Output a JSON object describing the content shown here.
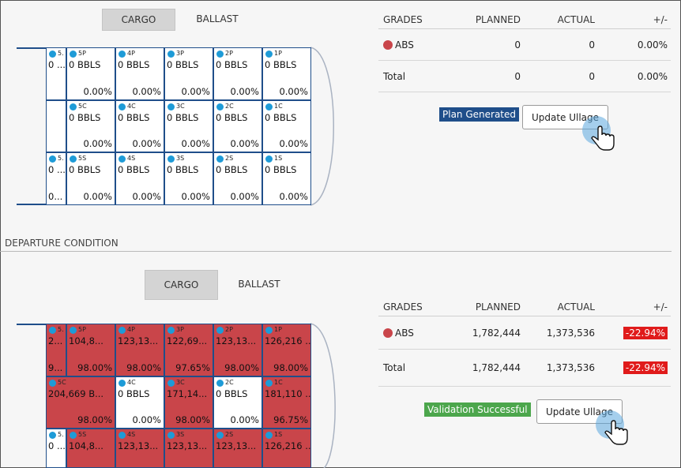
{
  "top": {
    "tabs": [
      {
        "label": "CARGO",
        "active": true
      },
      {
        "label": "BALLAST",
        "active": false
      }
    ],
    "tanks": {
      "slop_port": {
        "name": "5.",
        "vol": "0 ...",
        "pct": ""
      },
      "slop_center": {
        "name": "",
        "vol": "",
        "pct": ""
      },
      "slop_stbd": {
        "name": "5.",
        "vol": "0 ...",
        "pct": "0..."
      },
      "port": [
        {
          "name": "5P",
          "vol": "0 BBLS",
          "pct": "0.00%"
        },
        {
          "name": "4P",
          "vol": "0 BBLS",
          "pct": "0.00%"
        },
        {
          "name": "3P",
          "vol": "0 BBLS",
          "pct": "0.00%"
        },
        {
          "name": "2P",
          "vol": "0 BBLS",
          "pct": "0.00%"
        },
        {
          "name": "1P",
          "vol": "0 BBLS",
          "pct": "0.00%"
        }
      ],
      "center": [
        {
          "name": "5C",
          "vol": "0 BBLS",
          "pct": "0.00%"
        },
        {
          "name": "4C",
          "vol": "0 BBLS",
          "pct": "0.00%"
        },
        {
          "name": "3C",
          "vol": "0 BBLS",
          "pct": "0.00%"
        },
        {
          "name": "2C",
          "vol": "0 BBLS",
          "pct": "0.00%"
        },
        {
          "name": "1C",
          "vol": "0 BBLS",
          "pct": "0.00%"
        }
      ],
      "stbd": [
        {
          "name": "5S",
          "vol": "0 BBLS",
          "pct": "0.00%"
        },
        {
          "name": "4S",
          "vol": "0 BBLS",
          "pct": "0.00%"
        },
        {
          "name": "3S",
          "vol": "0 BBLS",
          "pct": "0.00%"
        },
        {
          "name": "2S",
          "vol": "0 BBLS",
          "pct": "0.00%"
        },
        {
          "name": "1S",
          "vol": "0 BBLS",
          "pct": "0.00%"
        }
      ]
    },
    "grades": {
      "headers": {
        "grades": "GRADES",
        "planned": "PLANNED",
        "actual": "ACTUAL",
        "diff": "+/-"
      },
      "row": {
        "grade": "ABS",
        "planned": "0",
        "actual": "0",
        "diff": "0.00%"
      },
      "total": {
        "label": "Total",
        "planned": "0",
        "actual": "0",
        "diff": "0.00%"
      }
    },
    "status": "Plan Generated",
    "button": "Update Ullage"
  },
  "departure": {
    "title": "DEPARTURE CONDITION",
    "tabs": [
      {
        "label": "CARGO",
        "active": true
      },
      {
        "label": "BALLAST",
        "active": false
      }
    ],
    "tanks": {
      "slop_port": {
        "name": "5.",
        "vol": "2...",
        "pct": "9..."
      },
      "slop_stbd": {
        "name": "5.",
        "vol": "0 ...",
        "pct": ""
      },
      "port": [
        {
          "name": "5P",
          "vol": "104,8...",
          "pct": "98.00%",
          "red": true
        },
        {
          "name": "4P",
          "vol": "123,13...",
          "pct": "98.00%",
          "red": true
        },
        {
          "name": "3P",
          "vol": "122,69...",
          "pct": "97.65%",
          "red": true
        },
        {
          "name": "2P",
          "vol": "123,13...",
          "pct": "98.00%",
          "red": true
        },
        {
          "name": "1P",
          "vol": "126,216 ...",
          "pct": "98.00%",
          "red": true
        }
      ],
      "center": [
        {
          "name": "5C",
          "vol": "204,669 B...",
          "pct": "98.00%",
          "red": true
        },
        {
          "name": "4C",
          "vol": "0 BBLS",
          "pct": "0.00%",
          "red": false
        },
        {
          "name": "3C",
          "vol": "171,14...",
          "pct": "98.00%",
          "red": true
        },
        {
          "name": "2C",
          "vol": "0 BBLS",
          "pct": "0.00%",
          "red": false
        },
        {
          "name": "1C",
          "vol": "181,110 ...",
          "pct": "96.75%",
          "red": true
        }
      ],
      "stbd": [
        {
          "name": "5S",
          "vol": "104,8...",
          "red": true
        },
        {
          "name": "4S",
          "vol": "123,13...",
          "red": true
        },
        {
          "name": "3S",
          "vol": "123,13...",
          "red": true
        },
        {
          "name": "2S",
          "vol": "123,13...",
          "red": true
        },
        {
          "name": "1S",
          "vol": "126,216 ...",
          "red": true
        }
      ]
    },
    "grades": {
      "headers": {
        "grades": "GRADES",
        "planned": "PLANNED",
        "actual": "ACTUAL",
        "diff": "+/-"
      },
      "row": {
        "grade": "ABS",
        "planned": "1,782,444",
        "actual": "1,373,536",
        "diff": "-22.94%"
      },
      "total": {
        "label": "Total",
        "planned": "1,782,444",
        "actual": "1,373,536",
        "diff": "-22.94%"
      }
    },
    "status": "Validation Successful",
    "button": "Update Ullage"
  },
  "colors": {
    "tank_border": "#1f4e8a",
    "tank_full": "#c9454a",
    "dot": "#1e9bd7",
    "negative": "#e01b1b",
    "status_blue": "#1f4e8a",
    "status_green": "#4ca64c"
  },
  "icons": {
    "cursor": "hand-pointer-icon",
    "grade_marker": "grade-dot-icon",
    "tank_marker": "tank-dot-icon"
  }
}
